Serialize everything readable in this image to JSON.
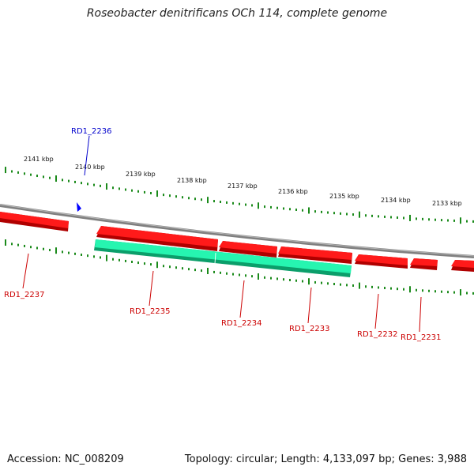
{
  "title": "Roseobacter denitrificans OCh 114, complete genome",
  "footer": {
    "accession": "Accession: NC_008209",
    "summary": "Topology: circular; Length: 4,133,097 bp; Genes: 3,988"
  },
  "scale_labels": [
    "2141 kbp",
    "2140 kbp",
    "2139 kbp",
    "2138 kbp",
    "2137 kbp",
    "2136 kbp",
    "2135 kbp",
    "2134 kbp",
    "2133 kbp"
  ],
  "gene_labels": {
    "top": [
      "RD1_2236"
    ],
    "bottom": [
      "RD1_2237",
      "RD1_2235",
      "RD1_2234",
      "RD1_2233",
      "RD1_2232",
      "RD1_2231"
    ]
  },
  "colors": {
    "backbone": "#8a8a8a",
    "gene_fill": "#ff0000",
    "gene_shadow": "#a00000",
    "highlight_fill": "#22ffb0",
    "tick": "#1a8a1a",
    "label_red": "#cc0000",
    "label_blue": "#0000cc"
  }
}
